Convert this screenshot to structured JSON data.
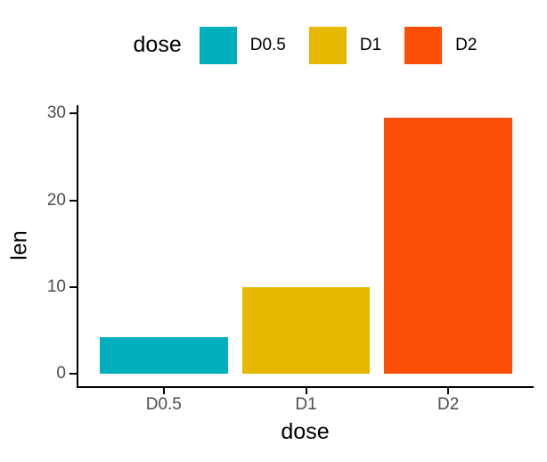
{
  "legend": {
    "title": "dose",
    "position": "top",
    "items": [
      {
        "label": "D0.5",
        "color": "#00AFBB"
      },
      {
        "label": "D1",
        "color": "#E7B800"
      },
      {
        "label": "D2",
        "color": "#FC4E07"
      }
    ]
  },
  "axes": {
    "x_title": "dose",
    "y_title": "len",
    "y_ticks": [
      0,
      10,
      20,
      30
    ],
    "x_tick_labels": [
      "D0.5",
      "D1",
      "D2"
    ],
    "axis_line_color": "#000000",
    "tick_label_color": "#4D4D4D"
  },
  "chart_data": {
    "type": "bar",
    "title": "",
    "categories": [
      "D0.5",
      "D1",
      "D2"
    ],
    "values": [
      4.2,
      10,
      29.5
    ],
    "colors": [
      "#00AFBB",
      "#E7B800",
      "#FC4E07"
    ],
    "xlabel": "dose",
    "ylabel": "len",
    "ylim": [
      0,
      29.5
    ],
    "ylim_expanded": [
      -1.475,
      30.975
    ],
    "yticks": [
      0,
      10,
      20,
      30
    ],
    "bar_width_fraction": 0.9,
    "category_expand_units": 0.6,
    "legend_position": "top",
    "grid": false,
    "background": "#FFFFFF"
  }
}
